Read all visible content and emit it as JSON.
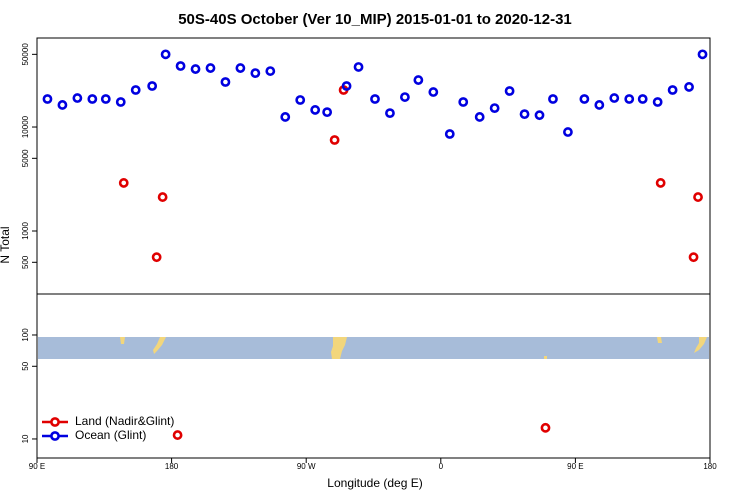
{
  "chart_data": {
    "type": "scatter",
    "title": "50S-40S October (Ver 10_MIP)   2015-01-01 to 2020-12-31",
    "xlabel": "Longitude (deg E)",
    "ylabel": "N Total",
    "log_y": true,
    "legend": "lower left",
    "xlim": [
      90,
      540
    ],
    "ylim": [
      6.56,
      71800
    ],
    "xticks": [
      {
        "value": 90,
        "label": "90 E"
      },
      180,
      {
        "value": 270,
        "label": "90 W"
      },
      {
        "value": 360,
        "label": "0"
      },
      {
        "value": 450,
        "label": "90 E"
      },
      {
        "value": 540,
        "label": "180"
      }
    ],
    "yticks": [
      10,
      50,
      100,
      500,
      1000,
      5000,
      10000,
      50000
    ],
    "series": [
      {
        "name": "Land (Nadir&Glint)",
        "color": "#e00000",
        "x": [
          148,
          174,
          170,
          289,
          295,
          184,
          430,
          507,
          532,
          529
        ],
        "values": [
          2900,
          2120,
          560,
          7500,
          22700,
          10.9,
          12.8,
          2900,
          2120,
          560
        ]
      },
      {
        "name": "Ocean (Glint)",
        "color": "#0000e0",
        "x": [
          97,
          107,
          117,
          127,
          136,
          146,
          156,
          167,
          176,
          186,
          196,
          206,
          216,
          226,
          236,
          246,
          256,
          266,
          276,
          284,
          297,
          305,
          316,
          326,
          336,
          345,
          355,
          366,
          375,
          386,
          396,
          406,
          416,
          426,
          435,
          445,
          456,
          466,
          476,
          486,
          495,
          505,
          515,
          526,
          535
        ],
        "values": [
          18600,
          16300,
          19000,
          18600,
          18600,
          17400,
          22700,
          24800,
          50000,
          38600,
          36100,
          36900,
          27100,
          36900,
          33000,
          34500,
          12500,
          18200,
          14600,
          13900,
          24800,
          37800,
          18600,
          13600,
          19400,
          28300,
          21700,
          8570,
          17400,
          12500,
          15200,
          22200,
          13300,
          13000,
          18600,
          8950,
          18600,
          16300,
          19000,
          18600,
          18600,
          17400,
          22700,
          24300,
          50000
        ]
      }
    ]
  }
}
